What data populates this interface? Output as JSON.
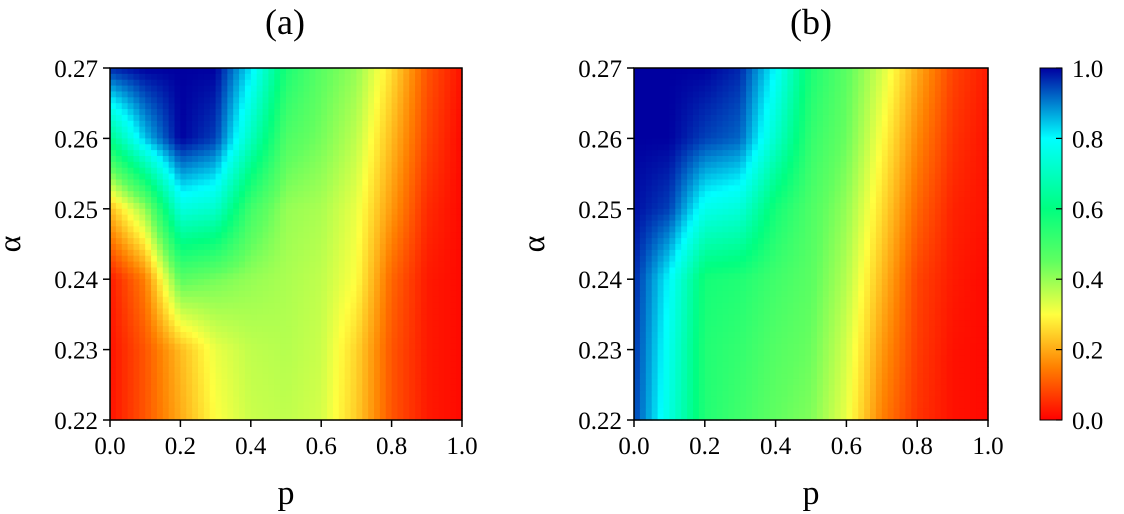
{
  "chart_data": [
    {
      "type": "heatmap",
      "title": "(a)",
      "xlabel": "p",
      "ylabel": "α",
      "xlim": [
        0.0,
        1.0
      ],
      "ylim": [
        0.22,
        0.27
      ],
      "x_ticks": [
        "0.0",
        "0.2",
        "0.4",
        "0.6",
        "0.8",
        "1.0"
      ],
      "y_ticks": [
        "0.22",
        "0.23",
        "0.24",
        "0.25",
        "0.26",
        "0.27"
      ],
      "x": [
        0.0,
        0.1,
        0.2,
        0.3,
        0.4,
        0.5,
        0.6,
        0.7,
        0.8,
        0.9,
        1.0
      ],
      "y": [
        0.22,
        0.23,
        0.24,
        0.25,
        0.26,
        0.27
      ],
      "z": [
        [
          0.02,
          0.1,
          0.2,
          0.3,
          0.35,
          0.36,
          0.34,
          0.24,
          0.1,
          0.03,
          0.01
        ],
        [
          0.02,
          0.1,
          0.22,
          0.32,
          0.36,
          0.37,
          0.35,
          0.25,
          0.1,
          0.03,
          0.01
        ],
        [
          0.03,
          0.15,
          0.46,
          0.43,
          0.4,
          0.38,
          0.36,
          0.3,
          0.12,
          0.03,
          0.01
        ],
        [
          0.22,
          0.4,
          0.75,
          0.72,
          0.5,
          0.4,
          0.38,
          0.32,
          0.18,
          0.05,
          0.01
        ],
        [
          0.62,
          0.85,
          1.0,
          0.95,
          0.7,
          0.48,
          0.43,
          0.36,
          0.22,
          0.08,
          0.01
        ],
        [
          0.97,
          1.0,
          1.0,
          1.0,
          0.82,
          0.56,
          0.46,
          0.4,
          0.26,
          0.1,
          0.02
        ]
      ]
    },
    {
      "type": "heatmap",
      "title": "(b)",
      "xlabel": "p",
      "ylabel": "α",
      "xlim": [
        0.0,
        1.0
      ],
      "ylim": [
        0.22,
        0.27
      ],
      "x_ticks": [
        "0.0",
        "0.2",
        "0.4",
        "0.6",
        "0.8",
        "1.0"
      ],
      "y_ticks": [
        "0.22",
        "0.23",
        "0.24",
        "0.25",
        "0.26",
        "0.27"
      ],
      "x": [
        0.0,
        0.1,
        0.2,
        0.3,
        0.4,
        0.5,
        0.6,
        0.7,
        0.8,
        0.9,
        1.0
      ],
      "y": [
        0.22,
        0.23,
        0.24,
        0.25,
        0.26,
        0.27
      ],
      "z": [
        [
          0.95,
          0.75,
          0.55,
          0.5,
          0.45,
          0.42,
          0.32,
          0.15,
          0.06,
          0.02,
          0.01
        ],
        [
          0.96,
          0.77,
          0.55,
          0.52,
          0.47,
          0.44,
          0.34,
          0.18,
          0.07,
          0.02,
          0.01
        ],
        [
          0.97,
          0.8,
          0.57,
          0.55,
          0.5,
          0.46,
          0.37,
          0.22,
          0.08,
          0.03,
          0.01
        ],
        [
          0.99,
          0.95,
          0.77,
          0.74,
          0.57,
          0.48,
          0.4,
          0.26,
          0.12,
          0.04,
          0.02
        ],
        [
          1.0,
          1.0,
          0.95,
          0.92,
          0.72,
          0.52,
          0.44,
          0.3,
          0.16,
          0.06,
          0.02
        ],
        [
          1.0,
          1.0,
          1.0,
          0.97,
          0.8,
          0.56,
          0.46,
          0.34,
          0.2,
          0.08,
          0.03
        ]
      ]
    }
  ],
  "colorbar": {
    "min": 0.0,
    "max": 1.0,
    "ticks": [
      "0.0",
      "0.2",
      "0.4",
      "0.6",
      "0.8",
      "1.0"
    ],
    "colormap": [
      "#ff0000",
      "#ff8000",
      "#ffff40",
      "#60ff60",
      "#00ff80",
      "#00ffff",
      "#0000a0"
    ]
  }
}
